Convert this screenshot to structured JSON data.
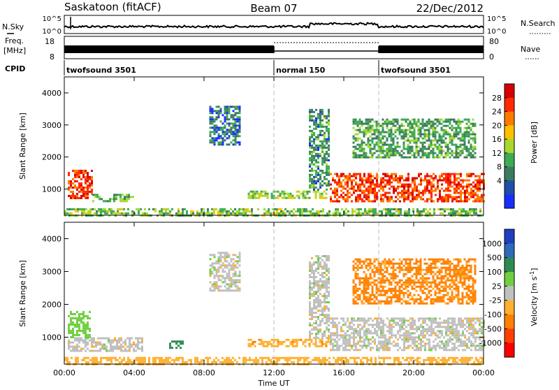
{
  "header": {
    "station": "Saskatoon (fitACF)",
    "beam": "Beam 07",
    "date": "22/Dec/2012"
  },
  "summary_panel": {
    "nsky_label": "N.Sky",
    "nsearch_label": "N.Search",
    "noise_ticks": [
      "10^5",
      "10^0"
    ],
    "freq_label_line1": "Freq.",
    "freq_label_line2": "[MHz]",
    "freq_ticks": [
      "18",
      "8"
    ],
    "nave_label": "Nave",
    "nave_ticks": [
      "80",
      "0"
    ],
    "cpid_label": "CPID",
    "cpid_segments": [
      {
        "name": "twofsound 3501",
        "start_hour": 0,
        "end_hour": 12
      },
      {
        "name": "normal 150",
        "start_hour": 12,
        "end_hour": 18
      },
      {
        "name": "twofsound 3501",
        "start_hour": 18,
        "end_hour": 24
      }
    ]
  },
  "chart_data": [
    {
      "type": "heatmap",
      "title": "",
      "xlabel": "",
      "ylabel": "Slant Range [km]",
      "xlim": [
        0,
        24
      ],
      "ylim": [
        180,
        4500
      ],
      "yticks": [
        1000,
        2000,
        3000,
        4000
      ],
      "colorbar_label": "Power [dB]",
      "colorbar_ticks": [
        "28",
        "24",
        "20",
        "16",
        "12",
        "8",
        "4"
      ],
      "colorbar_colors": [
        "#d80000",
        "#ff2a00",
        "#ff7a00",
        "#ffc000",
        "#a8d830",
        "#3cab52",
        "#3c7a60",
        "#1f4fa8",
        "#1a2dff"
      ],
      "regions": [
        {
          "x": [
            0.2,
            1.6
          ],
          "y": [
            700,
            1600
          ],
          "value": 26
        },
        {
          "x": [
            1.6,
            4.0
          ],
          "y": [
            650,
            850
          ],
          "value": 10
        },
        {
          "x": [
            10.5,
            15.0
          ],
          "y": [
            700,
            950
          ],
          "value": 14
        },
        {
          "x": [
            14.0,
            15.2
          ],
          "y": [
            1000,
            3500
          ],
          "value": 8
        },
        {
          "x": [
            15.2,
            24.0
          ],
          "y": [
            600,
            1500
          ],
          "value": 25
        },
        {
          "x": [
            16.5,
            23.5
          ],
          "y": [
            2000,
            3200
          ],
          "value": 9
        },
        {
          "x": [
            8.3,
            10.0
          ],
          "y": [
            2400,
            3600
          ],
          "value": 6
        },
        {
          "x": [
            0.0,
            24.0
          ],
          "y": [
            180,
            400
          ],
          "value": 12
        }
      ]
    },
    {
      "type": "heatmap",
      "title": "",
      "xlabel": "Time UT",
      "ylabel": "Slant Range [km]",
      "xlim": [
        0,
        24
      ],
      "ylim": [
        180,
        4500
      ],
      "yticks": [
        1000,
        2000,
        3000,
        4000
      ],
      "xticks": [
        "00:00",
        "04:00",
        "08:00",
        "12:00",
        "16:00",
        "20:00",
        "00:00"
      ],
      "colorbar_label": "Velocity [m s^-1]",
      "colorbar_ticks": [
        "1000",
        "500",
        "100",
        "25",
        "-25",
        "-100",
        "-500",
        "-1000"
      ],
      "colorbar_colors": [
        "#1f3fbf",
        "#2e6ab8",
        "#2f8a52",
        "#6fcf3f",
        "#c0c0c0",
        "#ffb030",
        "#ff8000",
        "#ff4000",
        "#ff0000"
      ],
      "regions": [
        {
          "x": [
            0.2,
            4.5
          ],
          "y": [
            600,
            1000
          ],
          "value": 0
        },
        {
          "x": [
            0.2,
            1.5
          ],
          "y": [
            1000,
            1800
          ],
          "value": 60
        },
        {
          "x": [
            6.0,
            6.8
          ],
          "y": [
            700,
            900
          ],
          "value": 300
        },
        {
          "x": [
            10.5,
            15.2
          ],
          "y": [
            700,
            950
          ],
          "value": -80
        },
        {
          "x": [
            14.0,
            15.2
          ],
          "y": [
            1000,
            3500
          ],
          "value": 0
        },
        {
          "x": [
            15.2,
            24.0
          ],
          "y": [
            600,
            1600
          ],
          "value": 0
        },
        {
          "x": [
            16.5,
            23.5
          ],
          "y": [
            2000,
            3400
          ],
          "value": -120
        },
        {
          "x": [
            8.3,
            10.0
          ],
          "y": [
            2400,
            3600
          ],
          "value": 0
        },
        {
          "x": [
            0.0,
            24.0
          ],
          "y": [
            180,
            400
          ],
          "value": -60
        }
      ]
    }
  ]
}
